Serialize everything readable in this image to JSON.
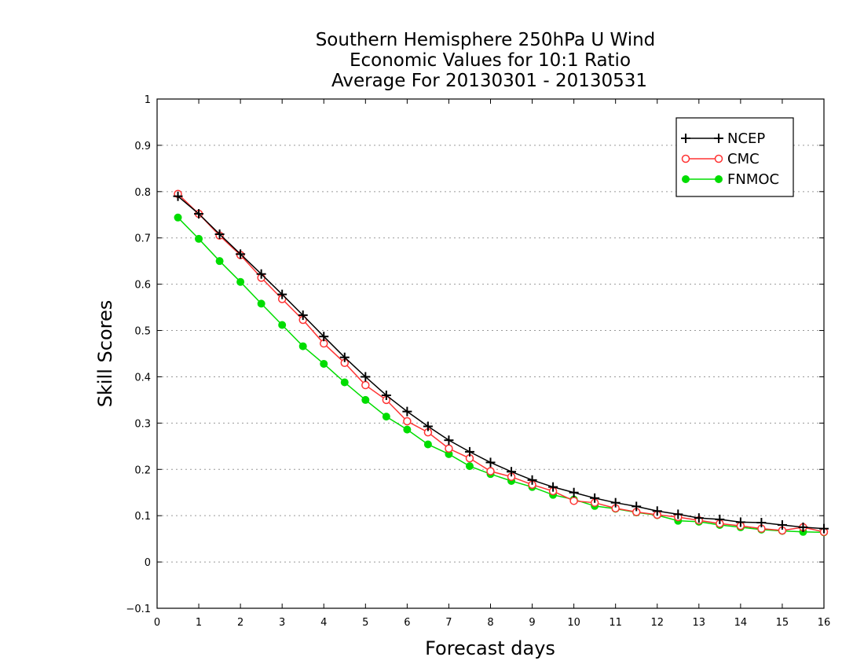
{
  "chart_data": {
    "type": "line",
    "title": [
      "Southern Hemisphere 250hPa U Wind",
      "Economic Values for 10:1 Ratio",
      "Average For 20130301 - 20130531"
    ],
    "xlabel": "Forecast days",
    "ylabel": "Skill Scores",
    "xlim": [
      0,
      16
    ],
    "ylim": [
      -0.1,
      1
    ],
    "xticks": [
      "0",
      "1",
      "2",
      "3",
      "4",
      "5",
      "6",
      "7",
      "8",
      "9",
      "10",
      "11",
      "12",
      "13",
      "14",
      "15",
      "16"
    ],
    "yticks": [
      "−0.1",
      "0",
      "0.1",
      "0.2",
      "0.3",
      "0.4",
      "0.5",
      "0.6",
      "0.7",
      "0.8",
      "0.9",
      "1"
    ],
    "ytick_values": [
      -0.1,
      0,
      0.1,
      0.2,
      0.3,
      0.4,
      0.5,
      0.6,
      0.7,
      0.8,
      0.9,
      1
    ],
    "grid": "horizontal dotted",
    "legend_position": "top-right",
    "x": [
      0.5,
      1,
      1.5,
      2,
      2.5,
      3,
      3.5,
      4,
      4.5,
      5,
      5.5,
      6,
      6.5,
      7,
      7.5,
      8,
      8.5,
      9,
      9.5,
      10,
      10.5,
      11,
      11.5,
      12,
      12.5,
      13,
      13.5,
      14,
      14.5,
      15,
      15.5,
      16
    ],
    "series": [
      {
        "name": "NCEP",
        "color": "#000000",
        "marker": "plus",
        "values": [
          0.79,
          0.752,
          0.708,
          0.665,
          0.622,
          0.578,
          0.533,
          0.487,
          0.442,
          0.4,
          0.36,
          0.325,
          0.293,
          0.263,
          0.238,
          0.215,
          0.195,
          0.177,
          0.162,
          0.15,
          0.138,
          0.128,
          0.12,
          0.11,
          0.103,
          0.095,
          0.092,
          0.086,
          0.085,
          0.08,
          0.075,
          0.072
        ]
      },
      {
        "name": "CMC",
        "color": "#ff3333",
        "marker": "open-circle",
        "values": [
          0.795,
          0.752,
          0.705,
          0.663,
          0.614,
          0.568,
          0.523,
          0.472,
          0.43,
          0.382,
          0.35,
          0.304,
          0.28,
          0.245,
          0.224,
          0.196,
          0.184,
          0.167,
          0.153,
          0.132,
          0.128,
          0.116,
          0.108,
          0.102,
          0.097,
          0.09,
          0.083,
          0.078,
          0.072,
          0.068,
          0.075,
          0.065
        ]
      },
      {
        "name": "FNMOC",
        "color": "#00dd00",
        "marker": "filled-circle",
        "values": [
          0.744,
          0.698,
          0.65,
          0.605,
          0.558,
          0.512,
          0.466,
          0.428,
          0.388,
          0.35,
          0.314,
          0.286,
          0.254,
          0.233,
          0.207,
          0.19,
          0.175,
          0.162,
          0.145,
          0.135,
          0.121,
          0.115,
          0.107,
          0.101,
          0.089,
          0.087,
          0.08,
          0.075,
          0.07,
          0.067,
          0.065,
          0.064
        ]
      }
    ]
  }
}
